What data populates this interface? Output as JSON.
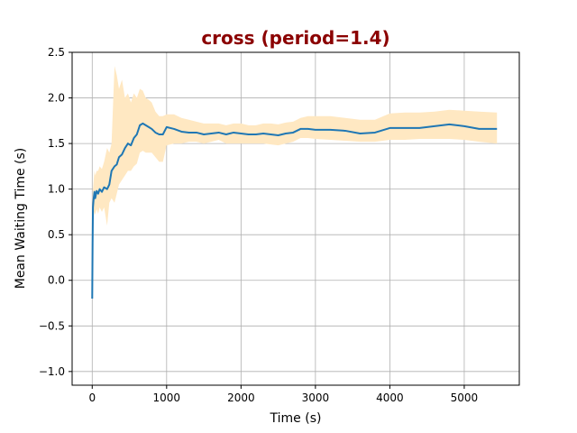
{
  "chart_data": {
    "type": "line",
    "title": "cross (period=1.4)",
    "xlabel": "Time (s)",
    "ylabel": "Mean Waiting Time (s)",
    "xlim": [
      -270,
      5740
    ],
    "ylim": [
      -1.15,
      2.5
    ],
    "xticks": [
      0,
      1000,
      2000,
      3000,
      4000,
      5000
    ],
    "xtick_labels": [
      "0",
      "1000",
      "2000",
      "3000",
      "4000",
      "5000"
    ],
    "yticks": [
      -1.0,
      -0.5,
      0.0,
      0.5,
      1.0,
      1.5,
      2.0,
      2.5
    ],
    "ytick_labels": [
      "−1.0",
      "−0.5",
      "0.0",
      "0.5",
      "1.0",
      "1.5",
      "2.0",
      "2.5"
    ],
    "grid": true,
    "colors": {
      "line": "#1f77b4",
      "band": "#ffe8c2",
      "title": "#8b0000"
    },
    "series": [
      {
        "x": [
          0,
          5,
          10,
          20,
          30,
          40,
          60,
          80,
          100,
          130,
          160,
          200,
          230,
          260,
          300,
          330,
          360,
          400,
          440,
          480,
          520,
          560,
          600,
          640,
          680,
          720,
          760,
          800,
          850,
          900,
          950,
          1000,
          1100,
          1200,
          1300,
          1400,
          1500,
          1600,
          1700,
          1800,
          1900,
          2000,
          2100,
          2200,
          2300,
          2400,
          2500,
          2600,
          2700,
          2800,
          2900,
          3000,
          3200,
          3400,
          3600,
          3800,
          4000,
          4200,
          4400,
          4600,
          4800,
          5000,
          5200,
          5440
        ],
        "y": [
          -0.2,
          0.4,
          0.8,
          0.9,
          0.97,
          0.9,
          0.98,
          0.95,
          1.0,
          0.97,
          1.02,
          1.0,
          1.05,
          1.2,
          1.25,
          1.27,
          1.35,
          1.38,
          1.45,
          1.5,
          1.48,
          1.56,
          1.6,
          1.7,
          1.72,
          1.7,
          1.68,
          1.66,
          1.62,
          1.6,
          1.6,
          1.68,
          1.66,
          1.63,
          1.62,
          1.62,
          1.6,
          1.61,
          1.62,
          1.6,
          1.62,
          1.61,
          1.6,
          1.6,
          1.61,
          1.6,
          1.59,
          1.61,
          1.62,
          1.66,
          1.66,
          1.65,
          1.65,
          1.64,
          1.61,
          1.62,
          1.67,
          1.67,
          1.67,
          1.69,
          1.71,
          1.69,
          1.66,
          1.66
        ],
        "lower": [
          -0.2,
          0.3,
          0.6,
          0.7,
          0.75,
          0.72,
          0.78,
          0.73,
          0.8,
          0.75,
          0.8,
          0.6,
          0.85,
          0.9,
          0.85,
          0.95,
          1.05,
          1.1,
          1.15,
          1.2,
          1.2,
          1.25,
          1.28,
          1.4,
          1.42,
          1.4,
          1.4,
          1.4,
          1.35,
          1.3,
          1.3,
          1.48,
          1.5,
          1.5,
          1.52,
          1.52,
          1.5,
          1.52,
          1.54,
          1.5,
          1.5,
          1.5,
          1.5,
          1.5,
          1.5,
          1.49,
          1.48,
          1.5,
          1.52,
          1.56,
          1.56,
          1.55,
          1.54,
          1.53,
          1.52,
          1.52,
          1.54,
          1.54,
          1.55,
          1.55,
          1.55,
          1.54,
          1.52,
          1.5
        ],
        "upper": [
          -0.2,
          0.5,
          1.0,
          1.1,
          1.2,
          1.15,
          1.2,
          1.2,
          1.25,
          1.22,
          1.3,
          1.45,
          1.4,
          1.5,
          2.35,
          2.25,
          2.1,
          2.2,
          2.0,
          2.05,
          1.95,
          2.05,
          2.0,
          2.1,
          2.08,
          2.0,
          1.98,
          1.95,
          1.85,
          1.8,
          1.8,
          1.82,
          1.82,
          1.78,
          1.76,
          1.74,
          1.72,
          1.72,
          1.72,
          1.7,
          1.72,
          1.72,
          1.7,
          1.7,
          1.72,
          1.72,
          1.71,
          1.73,
          1.74,
          1.78,
          1.8,
          1.8,
          1.8,
          1.78,
          1.76,
          1.76,
          1.83,
          1.84,
          1.84,
          1.85,
          1.87,
          1.86,
          1.85,
          1.84
        ]
      }
    ]
  }
}
